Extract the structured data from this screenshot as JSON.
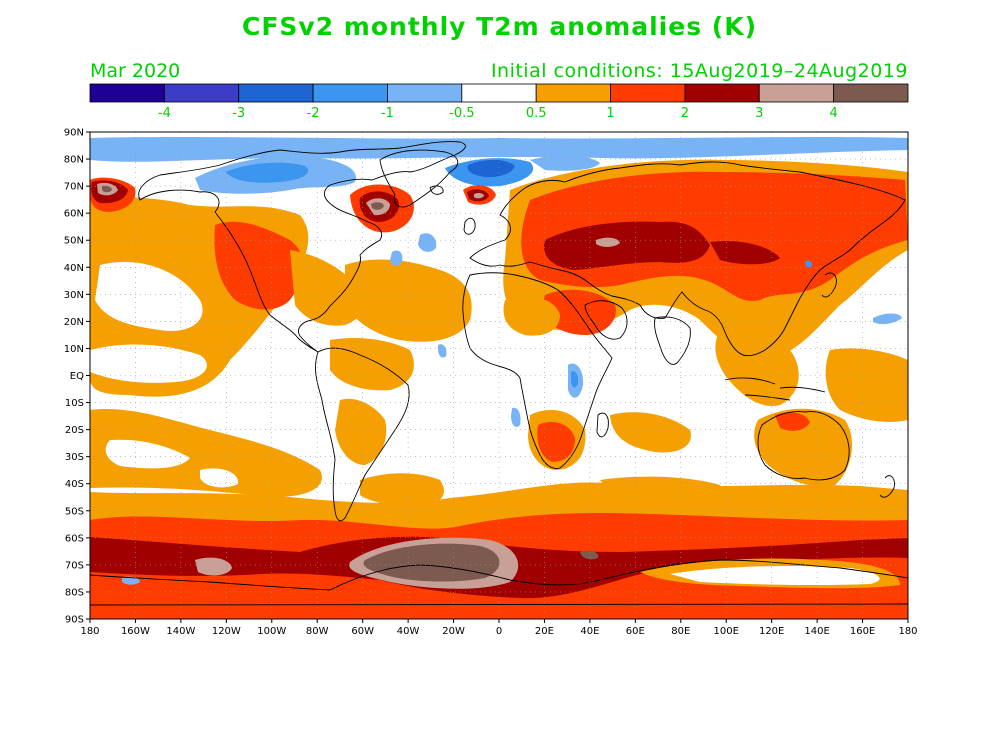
{
  "header": {
    "title": "CFSv2 monthly T2m anomalies (K)",
    "valid_month": "Mar 2020",
    "initial_conditions": "Initial conditions: 15Aug2019–24Aug2019"
  },
  "colorbar": {
    "colors": [
      "#1e0096",
      "#3c3cc8",
      "#1e64d2",
      "#3c96f0",
      "#78b4f5",
      "#ffffff",
      "#f5a000",
      "#ff3c00",
      "#a00000",
      "#c8a096",
      "#7d5a50"
    ],
    "labels": [
      "-4",
      "-3",
      "-2",
      "-1",
      "-0.5",
      "0.5",
      "1",
      "2",
      "3",
      "4"
    ]
  },
  "axes": {
    "lat_labels": [
      "90N",
      "80N",
      "70N",
      "60N",
      "50N",
      "40N",
      "30N",
      "20N",
      "10N",
      "EQ",
      "10S",
      "20S",
      "30S",
      "40S",
      "50S",
      "60S",
      "70S",
      "80S",
      "90S"
    ],
    "lon_labels": [
      "180",
      "160W",
      "140W",
      "120W",
      "100W",
      "80W",
      "60W",
      "40W",
      "20W",
      "0",
      "20E",
      "40E",
      "60E",
      "80E",
      "100E",
      "120E",
      "140E",
      "160E",
      "180"
    ]
  },
  "palette": {
    "light_blue": "#78b4f5",
    "blue": "#3c96f0",
    "dark_blue": "#1e64d2",
    "orange": "#f5a000",
    "red": "#ff3c00",
    "dark_red": "#a00000",
    "pink": "#c8a096",
    "brown": "#7d5a50",
    "coast": "#000000",
    "grid": "#9a9a9a"
  }
}
